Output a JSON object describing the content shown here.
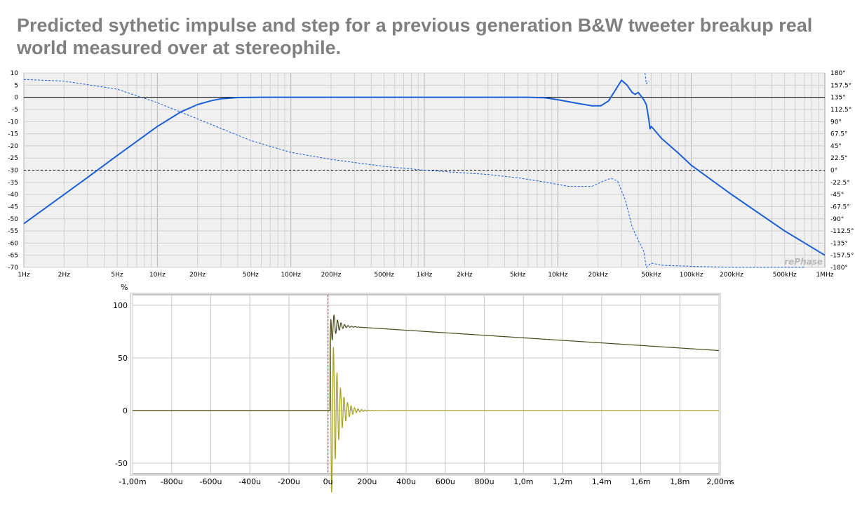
{
  "title": "Predicted sythetic impulse and step for a previous generation B&W tweeter breakup real world measured over at stereophile.",
  "watermark": "rePhase",
  "chart_data": [
    {
      "type": "line",
      "xscale": "log",
      "xlim": [
        1,
        1000000
      ],
      "ylim": [
        -70,
        10
      ],
      "y2lim": [
        -180,
        180
      ],
      "grid": true,
      "x_ticks": [
        {
          "v": 1,
          "label": "1Hz"
        },
        {
          "v": 2,
          "label": "2Hz"
        },
        {
          "v": 5,
          "label": "5Hz"
        },
        {
          "v": 10,
          "label": "10Hz"
        },
        {
          "v": 20,
          "label": "20Hz"
        },
        {
          "v": 50,
          "label": "50Hz"
        },
        {
          "v": 100,
          "label": "100Hz"
        },
        {
          "v": 200,
          "label": "200Hz"
        },
        {
          "v": 500,
          "label": "500Hz"
        },
        {
          "v": 1000,
          "label": "1kHz"
        },
        {
          "v": 2000,
          "label": "2kHz"
        },
        {
          "v": 5000,
          "label": "5kHz"
        },
        {
          "v": 10000,
          "label": "10kHz"
        },
        {
          "v": 20000,
          "label": "20kHz"
        },
        {
          "v": 50000,
          "label": "50kHz"
        },
        {
          "v": 100000,
          "label": "100kHz"
        },
        {
          "v": 200000,
          "label": "200kHz"
        },
        {
          "v": 500000,
          "label": "500kHz"
        },
        {
          "v": 1000000,
          "label": "1MHz"
        }
      ],
      "y_ticks": [
        {
          "v": 10,
          "label": "10"
        },
        {
          "v": 5,
          "label": "5"
        },
        {
          "v": 0,
          "label": "0"
        },
        {
          "v": -5,
          "label": "-5"
        },
        {
          "v": -10,
          "label": "-10"
        },
        {
          "v": -15,
          "label": "-15"
        },
        {
          "v": -20,
          "label": "-20"
        },
        {
          "v": -25,
          "label": "-25"
        },
        {
          "v": -30,
          "label": "-30"
        },
        {
          "v": -35,
          "label": "-35"
        },
        {
          "v": -40,
          "label": "-40"
        },
        {
          "v": -45,
          "label": "-45"
        },
        {
          "v": -50,
          "label": "-50"
        },
        {
          "v": -55,
          "label": "-55"
        },
        {
          "v": -60,
          "label": "-60"
        },
        {
          "v": -65,
          "label": "-65"
        },
        {
          "v": -70,
          "label": "-70"
        }
      ],
      "y2_ticks": [
        {
          "v": 180,
          "label": "180°"
        },
        {
          "v": 157.5,
          "label": "157.5°"
        },
        {
          "v": 135,
          "label": "135°"
        },
        {
          "v": 112.5,
          "label": "112.5°"
        },
        {
          "v": 90,
          "label": "90°"
        },
        {
          "v": 67.5,
          "label": "67.5°"
        },
        {
          "v": 45,
          "label": "45°"
        },
        {
          "v": 22.5,
          "label": "22.5°"
        },
        {
          "v": 0,
          "label": "0°"
        },
        {
          "v": -22.5,
          "label": "-22.5°"
        },
        {
          "v": -45,
          "label": "-45°"
        },
        {
          "v": -67.5,
          "label": "-67.5°"
        },
        {
          "v": -90,
          "label": "-90°"
        },
        {
          "v": -112.5,
          "label": "-112.5°"
        },
        {
          "v": -135,
          "label": "-135°"
        },
        {
          "v": -157.5,
          "label": "-157.5°"
        },
        {
          "v": -180,
          "label": "-180°"
        }
      ],
      "reference_lines": [
        {
          "axis": "y",
          "v": 0,
          "style": "solid"
        },
        {
          "axis": "y2",
          "v": 0,
          "style": "dashed"
        }
      ],
      "series": [
        {
          "role": "magnitude",
          "axis": "y",
          "color": "#1a5fd6",
          "style": "solid",
          "x": [
            1,
            3,
            5,
            10,
            15,
            20,
            25,
            30,
            40,
            60,
            100,
            1000,
            6000,
            8000,
            10000,
            14000,
            18000,
            21000,
            24000,
            27000,
            30000,
            33000,
            36000,
            38000,
            40000,
            42000,
            44000,
            46000,
            47000,
            48000,
            49000,
            50000,
            52000,
            60000,
            80000,
            100000,
            200000,
            500000,
            1000000
          ],
          "y": [
            -52,
            -33,
            -24,
            -12,
            -6,
            -3,
            -1.5,
            -0.6,
            -0.1,
            0,
            0,
            0,
            0,
            -0.2,
            -1,
            -2.5,
            -3.5,
            -3.5,
            -1.5,
            3,
            7,
            5,
            2,
            1.2,
            2,
            0.5,
            -1,
            -3,
            -6,
            -9,
            -13,
            -12,
            -13,
            -17,
            -23,
            -28,
            -40,
            -55,
            -65
          ]
        },
        {
          "role": "phase",
          "axis": "y2",
          "color": "#1a5fd6",
          "style": "dashed",
          "x": [
            1,
            2,
            5,
            10,
            20,
            50,
            100,
            200,
            500,
            1000,
            3000,
            5000,
            8000,
            12000,
            18000,
            22000,
            25000,
            28000,
            32000,
            36000,
            40000,
            44000,
            46000,
            50000,
            60000,
            100000,
            200000,
            500000,
            700000
          ],
          "y": [
            168,
            165,
            150,
            125,
            95,
            55,
            33,
            20,
            7,
            0,
            -8,
            -14,
            -22,
            -30,
            -30,
            -20,
            -15,
            -20,
            -55,
            -105,
            -130,
            -150,
            -180,
            -172,
            -176,
            -178,
            -180,
            -180,
            -180
          ]
        },
        {
          "role": "phase-wrap",
          "axis": "y2",
          "color": "#1a5fd6",
          "style": "dashed",
          "x": [
            45000,
            46000,
            48000
          ],
          "y": [
            180,
            160,
            165
          ]
        }
      ]
    },
    {
      "type": "line",
      "xlim": [
        -1.0,
        2.0
      ],
      "ylim": [
        -60,
        110
      ],
      "ylabel": "%",
      "xunit": "s",
      "grid": true,
      "x_ticks": [
        {
          "v": -1.0,
          "label": "-1,00m"
        },
        {
          "v": -0.8,
          "label": "-800u"
        },
        {
          "v": -0.6,
          "label": "-600u"
        },
        {
          "v": -0.4,
          "label": "-400u"
        },
        {
          "v": -0.2,
          "label": "-200u"
        },
        {
          "v": 0,
          "label": "0u"
        },
        {
          "v": 0.2,
          "label": "200u"
        },
        {
          "v": 0.4,
          "label": "400u"
        },
        {
          "v": 0.6,
          "label": "600u"
        },
        {
          "v": 0.8,
          "label": "800u"
        },
        {
          "v": 1.0,
          "label": "1,0m"
        },
        {
          "v": 1.2,
          "label": "1,2m"
        },
        {
          "v": 1.4,
          "label": "1,4m"
        },
        {
          "v": 1.6,
          "label": "1,6m"
        },
        {
          "v": 1.8,
          "label": "1,8m"
        },
        {
          "v": 2.0,
          "label": "2,00m"
        }
      ],
      "y_ticks": [
        {
          "v": 100,
          "label": "100"
        },
        {
          "v": 50,
          "label": "50"
        },
        {
          "v": 0,
          "label": "0"
        },
        {
          "v": -50,
          "label": "-50"
        }
      ],
      "marker_line": {
        "x": 0,
        "color": "#b03030",
        "style": "dashed"
      },
      "series": [
        {
          "role": "impulse",
          "color": "#a8a020",
          "params": {
            "t0": 0.01,
            "start_amp": 65,
            "peak_amp": 100,
            "period": 0.018,
            "decay": 0.035,
            "end": 2.0
          }
        },
        {
          "role": "step",
          "color": "#4a4a1a",
          "params": {
            "t0": 0.01,
            "overshoot": 20,
            "period": 0.018,
            "decay": 0.03,
            "plateau": 81,
            "end_value": 57,
            "end": 2.0
          }
        }
      ]
    }
  ]
}
